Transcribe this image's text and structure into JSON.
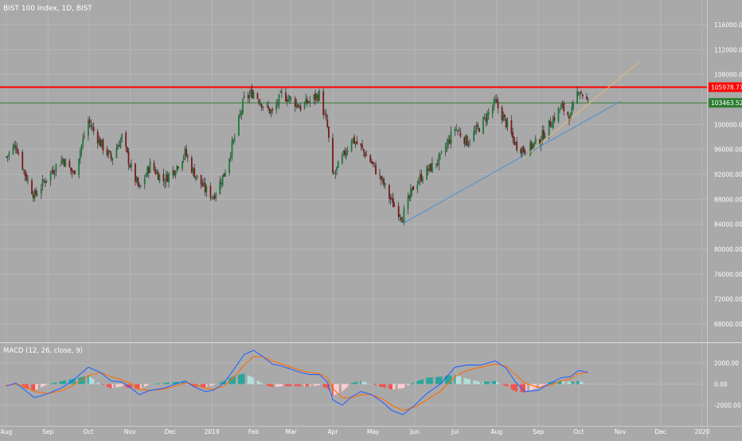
{
  "header": {
    "title": "BIST 100 Index, 1D, BIST",
    "macd_label": "MACD (12, 26, close, 9)"
  },
  "chart_data": [
    {
      "type": "candlestick",
      "title": "BIST 100 Index, 1D, BIST",
      "x_ticks": [
        "Aug",
        "Sep",
        "Oct",
        "Nov",
        "Dec",
        "2019",
        "Feb",
        "Mar",
        "Apr",
        "May",
        "Jun",
        "Jul",
        "Aug",
        "Sep",
        "Oct",
        "Nov",
        "Dec",
        "2020"
      ],
      "y_ticks": [
        "116000.00",
        "112000.00",
        "108000.00",
        "100000.00",
        "96000.00",
        "92000.00",
        "88000.00",
        "84000.00",
        "80000.00",
        "76000.00",
        "72000.00",
        "68000.00"
      ],
      "ylim": [
        65000,
        119500
      ],
      "price_labels": [
        {
          "text": "105978.77",
          "value": 105978.77,
          "color": "#ff0000"
        },
        {
          "text": "103463.52",
          "value": 103463.52,
          "color": "#2e7d32"
        }
      ],
      "horizontal_lines": [
        {
          "value": 105978.77,
          "color": "#ff0000"
        },
        {
          "value": 103463.52,
          "color": "#2e7d32"
        }
      ],
      "trend_lines": [
        {
          "from": [
            "May 23 2019",
            84100
          ],
          "to": [
            "Nov 1 2019",
            103700
          ],
          "color": "#4a90d9"
        },
        {
          "from": [
            "Aug 20 2019",
            94500
          ],
          "to": [
            "Nov 15 2019",
            110000
          ],
          "color": "#e8b87a"
        }
      ],
      "close_series": [
        [
          "Aug 1 2018",
          94800
        ],
        [
          "Aug 8 2018",
          96800
        ],
        [
          "Aug 15 2018",
          92000
        ],
        [
          "Aug 22 2018",
          88500
        ],
        [
          "Sep 1 2018",
          91800
        ],
        [
          "Sep 12 2018",
          94500
        ],
        [
          "Sep 20 2018",
          92000
        ],
        [
          "Oct 1 2018",
          100500
        ],
        [
          "Oct 10 2018",
          97000
        ],
        [
          "Oct 18 2018",
          94500
        ],
        [
          "Oct 26 2018",
          98000
        ],
        [
          "Nov 1 2018",
          93500
        ],
        [
          "Nov 8 2018",
          89500
        ],
        [
          "Nov 16 2018",
          93500
        ],
        [
          "Nov 26 2018",
          91000
        ],
        [
          "Dec 5 2018",
          93000
        ],
        [
          "Dec 12 2018",
          95500
        ],
        [
          "Dec 18 2018",
          92500
        ],
        [
          "Dec 27 2018",
          89500
        ],
        [
          "Jan 2 2019",
          88500
        ],
        [
          "Jan 10 2019",
          92000
        ],
        [
          "Jan 18 2019",
          98000
        ],
        [
          "Jan 25 2019",
          104000
        ],
        [
          "Feb 1 2019",
          105200
        ],
        [
          "Feb 8 2019",
          103200
        ],
        [
          "Feb 15 2019",
          101800
        ],
        [
          "Feb 22 2019",
          104800
        ],
        [
          "Mar 1 2019",
          104000
        ],
        [
          "Mar 8 2019",
          102800
        ],
        [
          "Mar 15 2019",
          103800
        ],
        [
          "Mar 22 2019",
          104800
        ],
        [
          "Mar 28 2019",
          99500
        ],
        [
          "Apr 1 2019",
          91500
        ],
        [
          "Apr 8 2019",
          94500
        ],
        [
          "Apr 15 2019",
          97800
        ],
        [
          "Apr 22 2019",
          96200
        ],
        [
          "Apr 30 2019",
          93800
        ],
        [
          "May 8 2019",
          90800
        ],
        [
          "May 15 2019",
          87500
        ],
        [
          "May 23 2019",
          85200
        ],
        [
          "Jun 1 2019",
          90500
        ],
        [
          "Jun 10 2019",
          92500
        ],
        [
          "Jun 20 2019",
          94500
        ],
        [
          "Jul 1 2019",
          99500
        ],
        [
          "Jul 10 2019",
          97200
        ],
        [
          "Jul 20 2019",
          99800
        ],
        [
          "Jul 31 2019",
          103500
        ],
        [
          "Aug 8 2019",
          100200
        ],
        [
          "Aug 15 2019",
          96800
        ],
        [
          "Aug 22 2019",
          95800
        ],
        [
          "Sep 1 2019",
          97200
        ],
        [
          "Sep 10 2019",
          100200
        ],
        [
          "Sep 18 2019",
          102800
        ],
        [
          "Sep 25 2019",
          101200
        ],
        [
          "Oct 1 2019",
          105800
        ],
        [
          "Oct 8 2019",
          103463.52
        ]
      ]
    },
    {
      "type": "macd",
      "title": "MACD (12, 26, close, 9)",
      "y_ticks": [
        "2000.00",
        "0.00",
        "-2000.00"
      ],
      "ylim": [
        -3200,
        3400
      ],
      "legend": "none",
      "histogram_colors": [
        "#26a69a",
        "#b2dfdb",
        "#ef5350",
        "#ffcdd2"
      ],
      "macd_color": "#2962ff",
      "signal_color": "#ff6d00",
      "macd_series": [
        [
          "Aug 1 2018",
          -200
        ],
        [
          "Aug 8 2018",
          100
        ],
        [
          "Aug 15 2018",
          -600
        ],
        [
          "Aug 22 2018",
          -1300
        ],
        [
          "Sep 1 2018",
          -900
        ],
        [
          "Sep 12 2018",
          -300
        ],
        [
          "Sep 20 2018",
          400
        ],
        [
          "Oct 1 2018",
          1600
        ],
        [
          "Oct 10 2018",
          1100
        ],
        [
          "Oct 18 2018",
          300
        ],
        [
          "Oct 26 2018",
          200
        ],
        [
          "Nov 1 2018",
          -300
        ],
        [
          "Nov 8 2018",
          -1000
        ],
        [
          "Nov 16 2018",
          -600
        ],
        [
          "Nov 26 2018",
          -400
        ],
        [
          "Dec 5 2018",
          0
        ],
        [
          "Dec 12 2018",
          300
        ],
        [
          "Dec 18 2018",
          -200
        ],
        [
          "Dec 27 2018",
          -700
        ],
        [
          "Jan 2 2019",
          -600
        ],
        [
          "Jan 10 2019",
          100
        ],
        [
          "Jan 18 2019",
          1500
        ],
        [
          "Jan 25 2019",
          2800
        ],
        [
          "Feb 1 2019",
          3200
        ],
        [
          "Feb 8 2019",
          2600
        ],
        [
          "Feb 15 2019",
          1900
        ],
        [
          "Feb 22 2019",
          1700
        ],
        [
          "Mar 1 2019",
          1400
        ],
        [
          "Mar 8 2019",
          1100
        ],
        [
          "Mar 15 2019",
          900
        ],
        [
          "Mar 22 2019",
          900
        ],
        [
          "Mar 28 2019",
          200
        ],
        [
          "Apr 1 2019",
          -1500
        ],
        [
          "Apr 8 2019",
          -2000
        ],
        [
          "Apr 15 2019",
          -1200
        ],
        [
          "Apr 22 2019",
          -700
        ],
        [
          "Apr 30 2019",
          -1000
        ],
        [
          "May 8 2019",
          -1700
        ],
        [
          "May 15 2019",
          -2500
        ],
        [
          "May 23 2019",
          -2900
        ],
        [
          "Jun 1 2019",
          -2000
        ],
        [
          "Jun 10 2019",
          -900
        ],
        [
          "Jun 20 2019",
          0
        ],
        [
          "Jul 1 2019",
          1600
        ],
        [
          "Jul 10 2019",
          1800
        ],
        [
          "Jul 20 2019",
          1800
        ],
        [
          "Jul 31 2019",
          2200
        ],
        [
          "Aug 8 2019",
          1500
        ],
        [
          "Aug 15 2019",
          200
        ],
        [
          "Aug 22 2019",
          -700
        ],
        [
          "Sep 1 2019",
          -600
        ],
        [
          "Sep 10 2019",
          100
        ],
        [
          "Sep 18 2019",
          600
        ],
        [
          "Sep 25 2019",
          700
        ],
        [
          "Oct 1 2019",
          1300
        ],
        [
          "Oct 8 2019",
          1100
        ]
      ],
      "signal_series": [
        [
          "Aug 1 2018",
          -100
        ],
        [
          "Aug 8 2018",
          0
        ],
        [
          "Aug 15 2018",
          -200
        ],
        [
          "Aug 22 2018",
          -700
        ],
        [
          "Sep 1 2018",
          -900
        ],
        [
          "Sep 12 2018",
          -600
        ],
        [
          "Sep 20 2018",
          -100
        ],
        [
          "Oct 1 2018",
          800
        ],
        [
          "Oct 10 2018",
          1100
        ],
        [
          "Oct 18 2018",
          700
        ],
        [
          "Oct 26 2018",
          400
        ],
        [
          "Nov 1 2018",
          100
        ],
        [
          "Nov 8 2018",
          -500
        ],
        [
          "Nov 16 2018",
          -600
        ],
        [
          "Nov 26 2018",
          -500
        ],
        [
          "Dec 5 2018",
          -200
        ],
        [
          "Dec 12 2018",
          100
        ],
        [
          "Dec 18 2018",
          0
        ],
        [
          "Dec 27 2018",
          -400
        ],
        [
          "Jan 2 2019",
          -500
        ],
        [
          "Jan 10 2019",
          -200
        ],
        [
          "Jan 18 2019",
          700
        ],
        [
          "Jan 25 2019",
          1800
        ],
        [
          "Feb 1 2019",
          2600
        ],
        [
          "Feb 8 2019",
          2600
        ],
        [
          "Feb 15 2019",
          2200
        ],
        [
          "Feb 22 2019",
          1900
        ],
        [
          "Mar 1 2019",
          1600
        ],
        [
          "Mar 8 2019",
          1300
        ],
        [
          "Mar 15 2019",
          1100
        ],
        [
          "Mar 22 2019",
          1000
        ],
        [
          "Mar 28 2019",
          600
        ],
        [
          "Apr 1 2019",
          -400
        ],
        [
          "Apr 8 2019",
          -1300
        ],
        [
          "Apr 15 2019",
          -1300
        ],
        [
          "Apr 22 2019",
          -1000
        ],
        [
          "Apr 30 2019",
          -1000
        ],
        [
          "May 8 2019",
          -1400
        ],
        [
          "May 15 2019",
          -2000
        ],
        [
          "May 23 2019",
          -2500
        ],
        [
          "Jun 1 2019",
          -2200
        ],
        [
          "Jun 10 2019",
          -1500
        ],
        [
          "Jun 20 2019",
          -700
        ],
        [
          "Jul 1 2019",
          700
        ],
        [
          "Jul 10 2019",
          1300
        ],
        [
          "Jul 20 2019",
          1600
        ],
        [
          "Jul 31 2019",
          1900
        ],
        [
          "Aug 8 2019",
          1700
        ],
        [
          "Aug 15 2019",
          900
        ],
        [
          "Aug 22 2019",
          100
        ],
        [
          "Sep 1 2019",
          -300
        ],
        [
          "Sep 10 2019",
          -100
        ],
        [
          "Sep 18 2019",
          300
        ],
        [
          "Sep 25 2019",
          500
        ],
        [
          "Oct 1 2019",
          1000
        ],
        [
          "Oct 8 2019",
          1100
        ]
      ]
    }
  ]
}
